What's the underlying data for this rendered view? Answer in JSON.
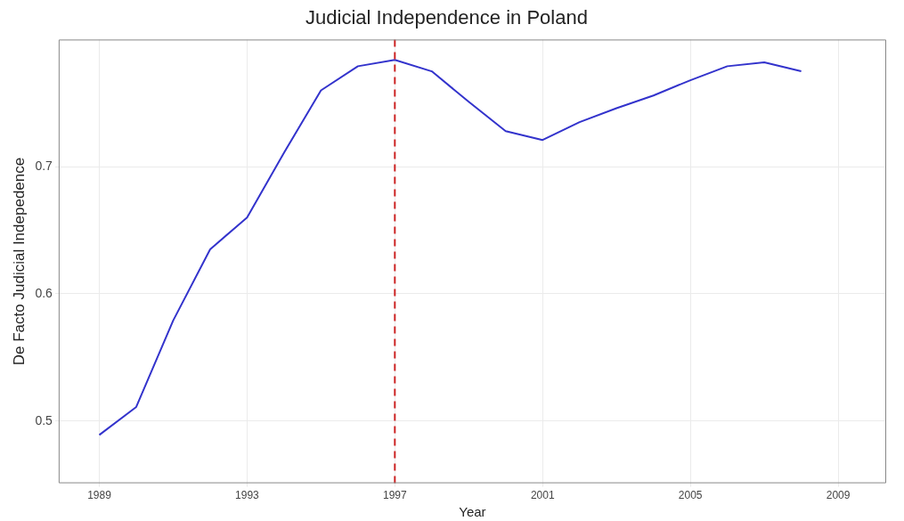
{
  "chart_data": {
    "type": "line",
    "title": "Judicial Independence in Poland",
    "xlabel": "Year",
    "ylabel": "De Facto Judicial Indepedence",
    "x": [
      1989,
      1990,
      1991,
      1992,
      1993,
      1994,
      1995,
      1996,
      1997,
      1998,
      1999,
      2000,
      2001,
      2002,
      2003,
      2004,
      2005,
      2006,
      2007,
      2008
    ],
    "series": [
      {
        "color": "#3333cc",
        "values": [
          0.489,
          0.511,
          0.579,
          0.635,
          0.66,
          0.711,
          0.76,
          0.779,
          0.784,
          0.775,
          0.751,
          0.728,
          0.721,
          0.735,
          0.746,
          0.756,
          0.768,
          0.779,
          0.782,
          0.775
        ]
      }
    ],
    "xlim": [
      1987.9,
      2010.3
    ],
    "xticks": [
      1989,
      1993,
      1997,
      2001,
      2005,
      2009
    ],
    "ylim": [
      0.451,
      0.8
    ],
    "yticks": [
      0.5,
      0.6,
      0.7
    ],
    "ref_lines": [
      {
        "axis": "x",
        "value": 1997,
        "color": "#cc2222",
        "line_style": "dashed"
      }
    ],
    "grid": true,
    "legend": false,
    "marker": "none",
    "line_style": "solid"
  }
}
